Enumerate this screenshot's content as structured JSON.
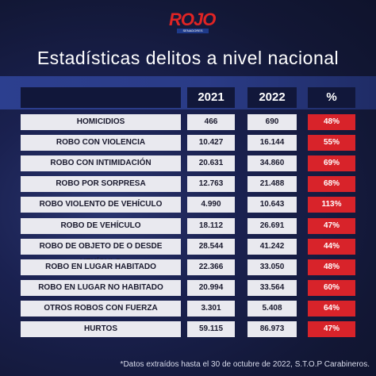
{
  "brand": {
    "name": "ROJO",
    "tagline": "SENADORES"
  },
  "title": "Estadísticas delitos a nivel nacional",
  "columns": [
    "2021",
    "2022",
    "%"
  ],
  "rows": [
    {
      "crime": "HOMICIDIOS",
      "y2021": "466",
      "y2022": "690",
      "pct": "48%"
    },
    {
      "crime": "ROBO CON VIOLENCIA",
      "y2021": "10.427",
      "y2022": "16.144",
      "pct": "55%"
    },
    {
      "crime": "ROBO CON INTIMIDACIÓN",
      "y2021": "20.631",
      "y2022": "34.860",
      "pct": "69%"
    },
    {
      "crime": "ROBO POR SORPRESA",
      "y2021": "12.763",
      "y2022": "21.488",
      "pct": "68%"
    },
    {
      "crime": "ROBO VIOLENTO DE VEHÍCULO",
      "y2021": "4.990",
      "y2022": "10.643",
      "pct": "113%"
    },
    {
      "crime": "ROBO DE VEHÍCULO",
      "y2021": "18.112",
      "y2022": "26.691",
      "pct": "47%"
    },
    {
      "crime": "ROBO DE OBJETO DE O DESDE VEHÍCULO",
      "y2021": "28.544",
      "y2022": "41.242",
      "pct": "44%"
    },
    {
      "crime": "ROBO EN LUGAR HABITADO",
      "y2021": "22.366",
      "y2022": "33.050",
      "pct": "48%"
    },
    {
      "crime": "ROBO EN LUGAR NO HABITADO",
      "y2021": "20.994",
      "y2022": "33.564",
      "pct": "60%"
    },
    {
      "crime": "OTROS ROBOS CON FUERZA",
      "y2021": "3.301",
      "y2022": "5.408",
      "pct": "64%"
    },
    {
      "crime": "HURTOS",
      "y2021": "59.115",
      "y2022": "86.973",
      "pct": "47%"
    }
  ],
  "footnote": "*Datos extraídos hasta el 30 de octubre de 2022, S.T.O.P Carabineros.",
  "colors": {
    "background": "#141a3c",
    "stripe": "#2c3f8f",
    "header_cell": "#11173a",
    "row_cell": "#e9e9ef",
    "pct_cell": "#d8232a",
    "brand_red": "#e02424"
  }
}
